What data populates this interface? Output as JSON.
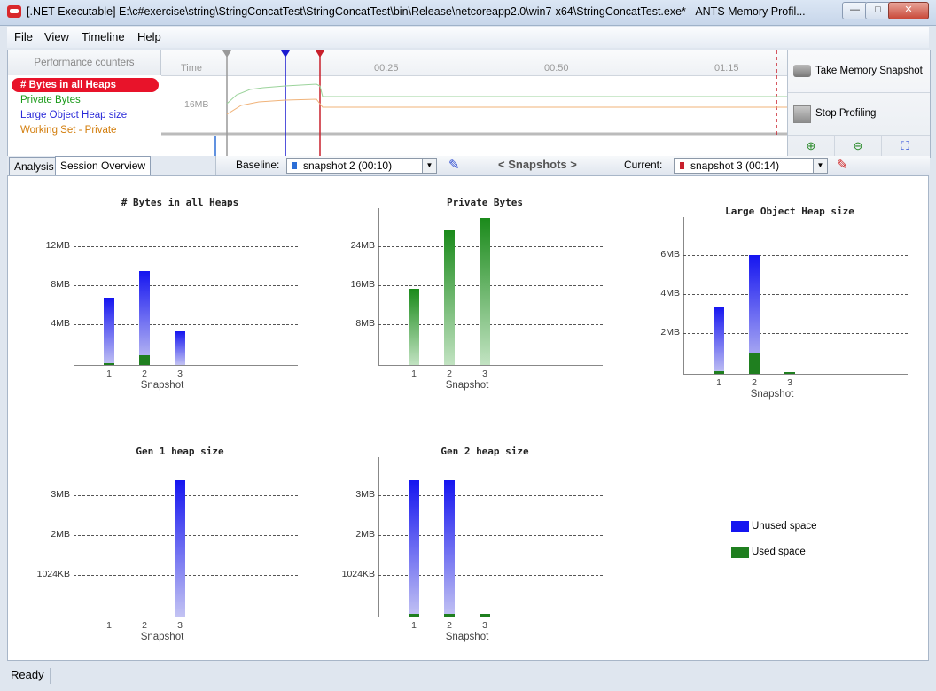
{
  "window": {
    "title": "[.NET Executable] E:\\c#exercise\\string\\StringConcatTest\\StringConcatTest\\bin\\Release\\netcoreapp2.0\\win7-x64\\StringConcatTest.exe* - ANTS Memory Profil...",
    "minimize_label": "—",
    "maximize_label": "□",
    "close_label": "✕"
  },
  "menu": {
    "file": "File",
    "view": "View",
    "timeline": "Timeline",
    "help": "Help"
  },
  "counters": {
    "header": "Performance counters",
    "items": [
      {
        "label": "# Bytes in all Heaps",
        "color": "#e8132a",
        "selected": true
      },
      {
        "label": "Private Bytes",
        "color": "#1a9a1a",
        "selected": false
      },
      {
        "label": "Large Object Heap size",
        "color": "#2a2ad8",
        "selected": false
      },
      {
        "label": "Working Set - Private",
        "color": "#d27c0a",
        "selected": false
      }
    ]
  },
  "timeline": {
    "time_label": "Time",
    "ticks": [
      "00:25",
      "00:50",
      "01:15"
    ],
    "y_label": "16MB"
  },
  "controls": {
    "take_snapshot": "Take Memory Snapshot",
    "stop_profiling": "Stop Profiling"
  },
  "tabs": {
    "analysis": "Analysis",
    "session_overview": "Session Overview"
  },
  "snapshots": {
    "baseline_label": "Baseline:",
    "baseline_value": "snapshot 2 (00:10)",
    "nav_label": "< Snapshots >",
    "current_label": "Current:",
    "current_value": "snapshot 3 (00:14)",
    "baseline_color": "#2c6ed6",
    "current_color": "#c8202c"
  },
  "legend": {
    "unused": "Unused space",
    "used": "Used space",
    "unused_color": "#1515f0",
    "used_color": "#1f7f1f"
  },
  "status": {
    "text": "Ready"
  },
  "chart_data": [
    {
      "type": "bar",
      "title": "# Bytes in all Heaps",
      "xlabel": "Snapshot",
      "categories": [
        "1",
        "2",
        "3"
      ],
      "yticks": [
        "4MB",
        "8MB",
        "12MB"
      ],
      "ylim": [
        0,
        14
      ],
      "series": [
        {
          "name": "Unused space",
          "values": [
            6.0,
            8.4,
            3.0
          ]
        },
        {
          "name": "Used space",
          "values": [
            0.1,
            0.9,
            0
          ]
        }
      ]
    },
    {
      "type": "bar",
      "title": "Private Bytes",
      "xlabel": "Snapshot",
      "categories": [
        "1",
        "2",
        "3"
      ],
      "yticks": [
        "8MB",
        "16MB",
        "24MB"
      ],
      "ylim": [
        0,
        28
      ],
      "series": [
        {
          "name": "Private Bytes",
          "values": [
            13.6,
            24.0,
            26.2
          ]
        }
      ]
    },
    {
      "type": "bar",
      "title": "Large Object Heap size",
      "xlabel": "Snapshot",
      "categories": [
        "1",
        "2",
        "3"
      ],
      "yticks": [
        "2MB",
        "4MB",
        "6MB"
      ],
      "ylim": [
        0,
        7
      ],
      "series": [
        {
          "name": "Unused space",
          "values": [
            3.0,
            5.3,
            0
          ]
        },
        {
          "name": "Used space",
          "values": [
            0.1,
            0.9,
            0.05
          ]
        }
      ]
    },
    {
      "type": "bar",
      "title": "Gen 1 heap size",
      "xlabel": "Snapshot",
      "categories": [
        "1",
        "2",
        "3"
      ],
      "yticks": [
        "1024KB",
        "2MB",
        "3MB"
      ],
      "ylim": [
        0,
        3.5
      ],
      "series": [
        {
          "name": "Unused space",
          "values": [
            0,
            0,
            3.0
          ]
        },
        {
          "name": "Used space",
          "values": [
            0,
            0,
            0
          ]
        }
      ]
    },
    {
      "type": "bar",
      "title": "Gen 2 heap size",
      "xlabel": "Snapshot",
      "categories": [
        "1",
        "2",
        "3"
      ],
      "yticks": [
        "1024KB",
        "2MB",
        "3MB"
      ],
      "ylim": [
        0,
        3.5
      ],
      "series": [
        {
          "name": "Unused space",
          "values": [
            3.0,
            3.0,
            0
          ]
        },
        {
          "name": "Used space",
          "values": [
            0.05,
            0.05,
            0.05
          ]
        }
      ]
    }
  ]
}
